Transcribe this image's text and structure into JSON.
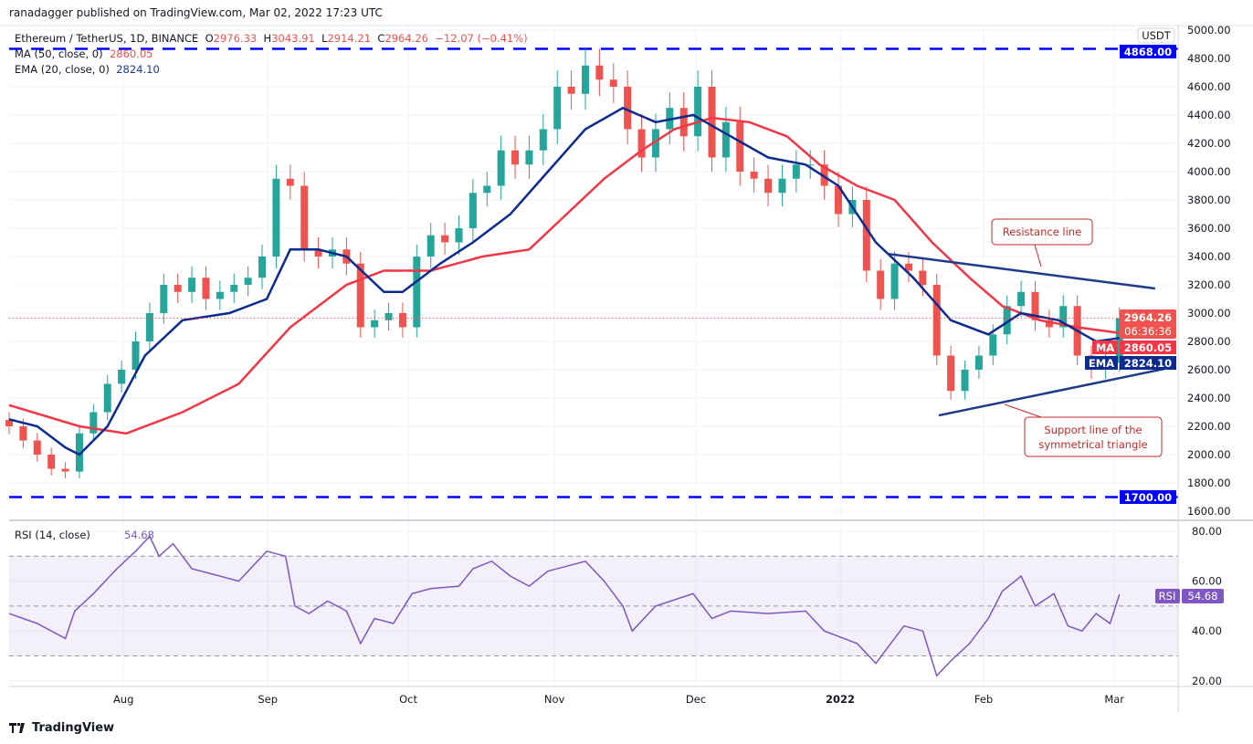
{
  "header": {
    "published": "ranadagger published on TradingView.com, Mar 02, 2022 17:23 UTC"
  },
  "legend": {
    "symbol": "Ethereum / TetherUS, 1D, BINANCE",
    "open_label": "O",
    "open": "2976.33",
    "high_label": "H",
    "high": "3043.91",
    "low_label": "L",
    "low": "2914.21",
    "close_label": "C",
    "close": "2964.26",
    "change": "−12.07 (−0.41%)",
    "ma_label": "MA (50, close, 0)",
    "ma_value": "2860.05",
    "ema_label": "EMA (20, close, 0)",
    "ema_value": "2824.10"
  },
  "rsi_legend": {
    "label": "RSI (14, close)",
    "value": "54.68"
  },
  "price_axis": {
    "currency": "USDT",
    "ticks": [
      "5000.00",
      "4800.00",
      "4600.00",
      "4400.00",
      "4200.00",
      "4000.00",
      "3800.00",
      "3600.00",
      "3400.00",
      "3200.00",
      "3000.00",
      "2800.00",
      "2600.00",
      "2400.00",
      "2200.00",
      "2000.00",
      "1800.00",
      "1600.00"
    ]
  },
  "rsi_axis": {
    "ticks": [
      "80.00",
      "60.00",
      "40.00",
      "20.00"
    ]
  },
  "tags": {
    "last_price": "2964.26",
    "countdown": "06:36:36",
    "ma_name": "MA",
    "ma_value": "2860.05",
    "ema_name": "EMA",
    "ema_value": "2824.10",
    "top_level": "4868.00",
    "bottom_level": "1700.00",
    "rsi_name": "RSI",
    "rsi_value": "54.68"
  },
  "annotations": {
    "resistance": "Resistance line",
    "support_1": "Support line of the",
    "support_2": "symmetrical triangle"
  },
  "footer": {
    "brand": "TradingView"
  },
  "colors": {
    "up": "#26a69a",
    "down": "#ef5350",
    "ma": "#f23645",
    "ema": "#0d2b8f",
    "level": "#0000ff",
    "rsi": "#7e57c2"
  },
  "chart_data": [
    {
      "type": "candlestick",
      "title": "Ethereum / TetherUS, 1D, BINANCE",
      "x_unit": "days since 2021-07-06",
      "start_day": 0,
      "step_days": 3,
      "closes": [
        2200,
        2100,
        2000,
        1900,
        1880,
        2150,
        2300,
        2500,
        2600,
        2800,
        3000,
        3200,
        3150,
        3250,
        3100,
        3150,
        3200,
        3250,
        3400,
        3950,
        3900,
        3450,
        3400,
        3450,
        3350,
        2900,
        2950,
        3000,
        2900,
        3400,
        3550,
        3500,
        3600,
        3850,
        3900,
        4150,
        4050,
        4150,
        4300,
        4600,
        4550,
        4750,
        4650,
        4600,
        4300,
        4100,
        4300,
        4450,
        4250,
        4600,
        4100,
        4350,
        4000,
        3950,
        3850,
        3950,
        4050,
        4050,
        3900,
        3700,
        3800,
        3300,
        3100,
        3350,
        3300,
        3200,
        2700,
        2450,
        2600,
        2700,
        2850,
        3050,
        3150,
        2950,
        2900,
        3050,
        2700,
        2600,
        2650,
        2964.26
      ],
      "ma50": [
        [
          0,
          2350
        ],
        [
          15,
          2200
        ],
        [
          25,
          2150
        ],
        [
          37,
          2300
        ],
        [
          49,
          2500
        ],
        [
          60,
          2900
        ],
        [
          72,
          3200
        ],
        [
          80,
          3300
        ],
        [
          90,
          3300
        ],
        [
          101,
          3400
        ],
        [
          111,
          3450
        ],
        [
          119,
          3700
        ],
        [
          127,
          3950
        ],
        [
          135,
          4150
        ],
        [
          142,
          4300
        ],
        [
          150,
          4380
        ],
        [
          158,
          4350
        ],
        [
          166,
          4250
        ],
        [
          173,
          4050
        ],
        [
          181,
          3900
        ],
        [
          189,
          3800
        ],
        [
          197,
          3500
        ],
        [
          205,
          3250
        ],
        [
          212,
          3050
        ],
        [
          220,
          2950
        ],
        [
          228,
          2900
        ],
        [
          237,
          2860.05
        ]
      ],
      "ema20": [
        [
          0,
          2250
        ],
        [
          6,
          2200
        ],
        [
          12,
          2050
        ],
        [
          15,
          2000
        ],
        [
          21,
          2200
        ],
        [
          29,
          2700
        ],
        [
          37,
          2950
        ],
        [
          47,
          3000
        ],
        [
          55,
          3100
        ],
        [
          60,
          3450
        ],
        [
          66,
          3450
        ],
        [
          72,
          3400
        ],
        [
          80,
          3150
        ],
        [
          84,
          3150
        ],
        [
          92,
          3350
        ],
        [
          99,
          3500
        ],
        [
          107,
          3700
        ],
        [
          115,
          4000
        ],
        [
          123,
          4300
        ],
        [
          131,
          4450
        ],
        [
          138,
          4350
        ],
        [
          146,
          4400
        ],
        [
          154,
          4250
        ],
        [
          162,
          4100
        ],
        [
          170,
          4050
        ],
        [
          177,
          3900
        ],
        [
          185,
          3500
        ],
        [
          193,
          3250
        ],
        [
          201,
          2950
        ],
        [
          209,
          2850
        ],
        [
          216,
          3000
        ],
        [
          224,
          2950
        ],
        [
          232,
          2800
        ],
        [
          237,
          2824.1
        ]
      ],
      "levels": [
        4868,
        1700
      ],
      "resistance_line": [
        [
          187.5,
          3419
        ],
        [
          244.6,
          3174
        ]
      ],
      "support_line": [
        [
          198.4,
          2277
        ],
        [
          246.6,
          2606
        ]
      ],
      "x_ticks": [
        {
          "label": "Aug",
          "day": 24.4
        },
        {
          "label": "Sep",
          "day": 55.2
        },
        {
          "label": "Oct",
          "day": 85.2
        },
        {
          "label": "Nov",
          "day": 116.4
        },
        {
          "label": "Dec",
          "day": 146.6
        },
        {
          "label": "2022",
          "day": 177.4
        },
        {
          "label": "Feb",
          "day": 208
        },
        {
          "label": "Mar",
          "day": 235.9
        }
      ],
      "ylim": [
        1600,
        5000
      ]
    },
    {
      "type": "line",
      "title": "RSI (14, close)",
      "bands": [
        70,
        50,
        30
      ],
      "ylim": [
        20,
        80
      ],
      "points": [
        [
          0,
          47
        ],
        [
          6,
          43
        ],
        [
          12,
          37
        ],
        [
          14,
          48
        ],
        [
          18,
          55
        ],
        [
          23,
          65
        ],
        [
          27,
          72
        ],
        [
          30,
          78
        ],
        [
          32,
          70
        ],
        [
          35,
          75
        ],
        [
          39,
          65
        ],
        [
          43,
          63
        ],
        [
          49,
          60
        ],
        [
          55,
          72
        ],
        [
          59,
          70
        ],
        [
          61,
          50
        ],
        [
          64,
          47
        ],
        [
          68,
          52
        ],
        [
          72,
          48
        ],
        [
          75,
          35
        ],
        [
          78,
          45
        ],
        [
          82,
          43
        ],
        [
          86,
          55
        ],
        [
          90,
          57
        ],
        [
          96,
          58
        ],
        [
          99,
          65
        ],
        [
          103,
          68
        ],
        [
          107,
          62
        ],
        [
          111,
          58
        ],
        [
          115,
          64
        ],
        [
          123,
          68
        ],
        [
          127,
          60
        ],
        [
          131,
          50
        ],
        [
          133,
          40
        ],
        [
          138,
          50
        ],
        [
          146,
          55
        ],
        [
          150,
          45
        ],
        [
          154,
          48
        ],
        [
          162,
          47
        ],
        [
          170,
          48
        ],
        [
          174,
          40
        ],
        [
          181,
          35
        ],
        [
          185,
          27
        ],
        [
          191,
          42
        ],
        [
          195,
          40
        ],
        [
          198,
          22
        ],
        [
          201,
          28
        ],
        [
          205,
          35
        ],
        [
          209,
          45
        ],
        [
          212,
          56
        ],
        [
          216,
          62
        ],
        [
          219,
          50
        ],
        [
          223,
          55
        ],
        [
          226,
          42
        ],
        [
          229,
          40
        ],
        [
          232,
          47
        ],
        [
          235,
          43
        ],
        [
          237,
          54.68
        ]
      ]
    }
  ]
}
